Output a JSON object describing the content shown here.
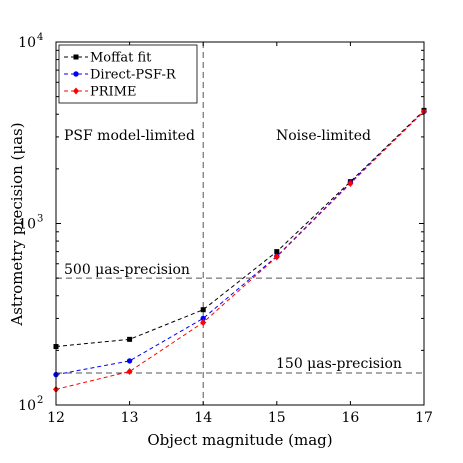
{
  "chart_data": {
    "type": "line",
    "xlabel": "Object magnitude (mag)",
    "ylabel": "Astrometry precision (μas)",
    "y_scale": "log",
    "xlim": [
      12,
      17
    ],
    "ylim": [
      100,
      10000
    ],
    "x_ticks": [
      12,
      13,
      14,
      15,
      16,
      17
    ],
    "x_tick_labels": [
      "12",
      "13",
      "14",
      "15",
      "16",
      "17"
    ],
    "y_ticks": [
      100,
      1000,
      10000
    ],
    "y_tick_labels": [
      "10",
      "10",
      "10"
    ],
    "y_tick_exponents": [
      "2",
      "3",
      "4"
    ],
    "x": [
      12,
      13,
      14,
      15,
      16,
      17
    ],
    "series": [
      {
        "name": "Moffat fit",
        "color": "#000000",
        "marker": "square",
        "values": [
          210,
          230,
          335,
          700,
          1700,
          4200
        ]
      },
      {
        "name": "Direct-PSF-R",
        "color": "#0000ff",
        "marker": "circle",
        "values": [
          147,
          175,
          300,
          660,
          1680,
          4150
        ]
      },
      {
        "name": "PRIME",
        "color": "#ff0000",
        "marker": "diamond",
        "values": [
          122,
          153,
          285,
          655,
          1660,
          4150
        ]
      }
    ],
    "reference_lines": {
      "horizontal": [
        {
          "y": 500,
          "label": "500 μas-precision"
        },
        {
          "y": 150,
          "label": "150 μas-precision"
        }
      ],
      "vertical": [
        {
          "x": 14
        }
      ]
    },
    "annotations": [
      {
        "text": "PSF model-limited"
      },
      {
        "text": "Noise-limited"
      }
    ],
    "legend_position": "top-left",
    "grid": false
  }
}
